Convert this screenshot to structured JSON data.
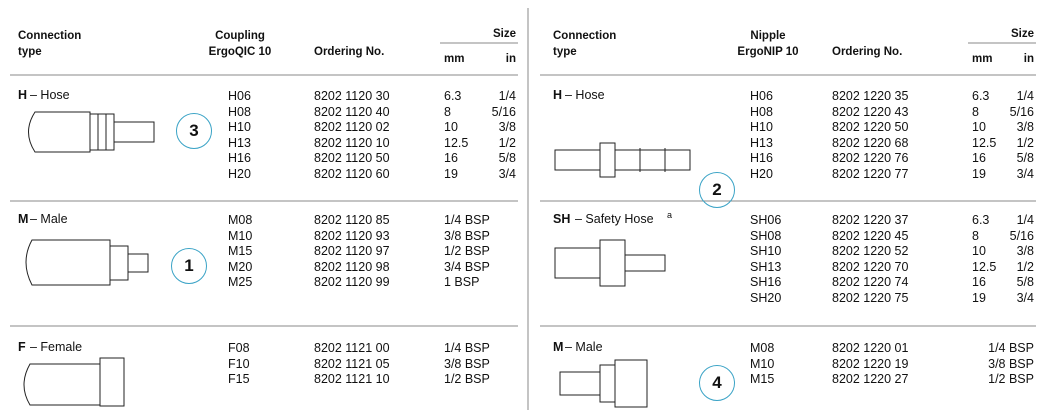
{
  "tables": [
    {
      "headers": {
        "connection": [
          "Connection",
          "type"
        ],
        "product": [
          "Coupling",
          "ErgoQIC 10"
        ],
        "ordering": "Ordering No.",
        "size": "Size",
        "mm": "mm",
        "in": "in"
      },
      "groups": [
        {
          "letter": "H",
          "label": " – Hose",
          "badge": "3",
          "rows": [
            [
              "H06",
              "8202 1120 30",
              "6.3",
              "1/4"
            ],
            [
              "H08",
              "8202 1120 40",
              "8",
              "5/16"
            ],
            [
              "H10",
              "8202 1120 02",
              "10",
              "3/8"
            ],
            [
              "H13",
              "8202 1120 10",
              "12.5",
              "1/2"
            ],
            [
              "H16",
              "8202 1120 50",
              "16",
              "5/8"
            ],
            [
              "H20",
              "8202 1120 60",
              "19",
              "3/4"
            ]
          ]
        },
        {
          "letter": "M",
          "label": " – Male",
          "badge": "1",
          "rows": [
            [
              "M08",
              "8202 1120 85",
              "1/4 BSP"
            ],
            [
              "M10",
              "8202 1120 93",
              "3/8 BSP"
            ],
            [
              "M15",
              "8202 1120 97",
              "1/2 BSP"
            ],
            [
              "M20",
              "8202 1120 98",
              "3/4 BSP"
            ],
            [
              "M25",
              "8202 1120 99",
              "1 BSP"
            ]
          ]
        },
        {
          "letter": "F",
          "label": " – Female",
          "rows": [
            [
              "F08",
              "8202 1121 00",
              "1/4 BSP"
            ],
            [
              "F10",
              "8202 1121 05",
              "3/8 BSP"
            ],
            [
              "F15",
              "8202 1121 10",
              "1/2 BSP"
            ]
          ]
        }
      ]
    },
    {
      "headers": {
        "connection": [
          "Connection",
          "type"
        ],
        "product": [
          "Nipple",
          "ErgoNIP 10"
        ],
        "ordering": "Ordering No.",
        "size": "Size",
        "mm": "mm",
        "in": "in"
      },
      "groups": [
        {
          "letter": "H",
          "label": " – Hose",
          "badge": "2",
          "rows": [
            [
              "H06",
              "8202 1220 35",
              "6.3",
              "1/4"
            ],
            [
              "H08",
              "8202 1220 43",
              "8",
              "5/16"
            ],
            [
              "H10",
              "8202 1220 50",
              "10",
              "3/8"
            ],
            [
              "H13",
              "8202 1220 68",
              "12.5",
              "1/2"
            ],
            [
              "H16",
              "8202 1220 76",
              "16",
              "5/8"
            ],
            [
              "H20",
              "8202 1220 77",
              "19",
              "3/4"
            ]
          ]
        },
        {
          "letter": "SH",
          "label": " – Safety Hose",
          "note": "a",
          "rows": [
            [
              "SH06",
              "8202 1220 37",
              "6.3",
              "1/4"
            ],
            [
              "SH08",
              "8202 1220 45",
              "8",
              "5/16"
            ],
            [
              "SH10",
              "8202 1220 52",
              "10",
              "3/8"
            ],
            [
              "SH13",
              "8202 1220 70",
              "12.5",
              "1/2"
            ],
            [
              "SH16",
              "8202 1220 74",
              "16",
              "5/8"
            ],
            [
              "SH20",
              "8202 1220 75",
              "19",
              "3/4"
            ]
          ]
        },
        {
          "letter": "M",
          "label": " – Male",
          "badge": "4",
          "rows": [
            [
              "M08",
              "8202 1220 01",
              "1/4 BSP"
            ],
            [
              "M10",
              "8202 1220 19",
              "3/8 BSP"
            ],
            [
              "M15",
              "8202 1220 27",
              "1/2 BSP"
            ]
          ]
        }
      ]
    }
  ]
}
